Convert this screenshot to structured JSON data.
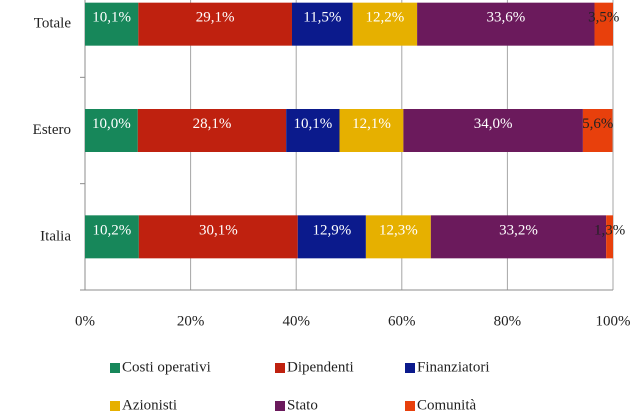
{
  "chart_data": {
    "type": "stacked_barh",
    "categories": [
      "Totale",
      "Estero",
      "Italia"
    ],
    "series": [
      {
        "name": "Costi operativi",
        "color": "#17875a",
        "values": [
          10.1,
          10.0,
          10.2
        ],
        "value_labels": [
          "10,1%",
          "10,0%",
          "10,2%"
        ]
      },
      {
        "name": "Dipendenti",
        "color": "#bf210f",
        "values": [
          29.1,
          28.1,
          30.1
        ],
        "value_labels": [
          "29,1%",
          "28,1%",
          "30,1%"
        ]
      },
      {
        "name": "Finanziatori",
        "color": "#0b1a8c",
        "values": [
          11.5,
          10.1,
          12.9
        ],
        "value_labels": [
          "11,5%",
          "10,1%",
          "12,9%"
        ]
      },
      {
        "name": "Azionisti",
        "color": "#e6b000",
        "values": [
          12.2,
          12.1,
          12.3
        ],
        "value_labels": [
          "12,2%",
          "12,1%",
          "12,3%"
        ]
      },
      {
        "name": "Stato",
        "color": "#6b1a5c",
        "values": [
          33.6,
          34.0,
          33.2
        ],
        "value_labels": [
          "33,6%",
          "34,0%",
          "33,2%"
        ]
      },
      {
        "name": "Comunità",
        "color": "#e8400c",
        "values": [
          3.5,
          5.6,
          1.3
        ],
        "value_labels": [
          "3,5%",
          "5,6%",
          "1,3%"
        ]
      }
    ],
    "xlim": [
      0,
      100
    ],
    "xticks": [
      {
        "value": 0,
        "label": "0%"
      },
      {
        "value": 20,
        "label": "20%"
      },
      {
        "value": 40,
        "label": "40%"
      },
      {
        "value": 60,
        "label": "60%"
      },
      {
        "value": 80,
        "label": "80%"
      },
      {
        "value": 100,
        "label": "100%"
      }
    ],
    "grid": true,
    "legend": "bottom"
  }
}
